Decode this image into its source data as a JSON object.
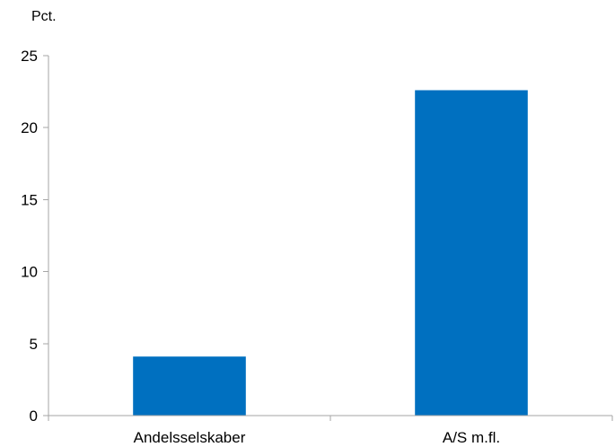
{
  "chart_data": {
    "type": "bar",
    "ylabel": "Pct.",
    "xlabel": "",
    "title": "",
    "categories": [
      "Andelsselskaber",
      "A/S m.fl."
    ],
    "values": [
      4.1,
      22.6
    ],
    "ylim": [
      0,
      25
    ],
    "yticks": [
      0,
      5,
      10,
      15,
      20,
      25
    ],
    "ytick_labels": [
      "0",
      "5",
      "10",
      "15",
      "20",
      "25"
    ],
    "grid": false,
    "legend": "none",
    "bar_color": "#0070c0"
  }
}
